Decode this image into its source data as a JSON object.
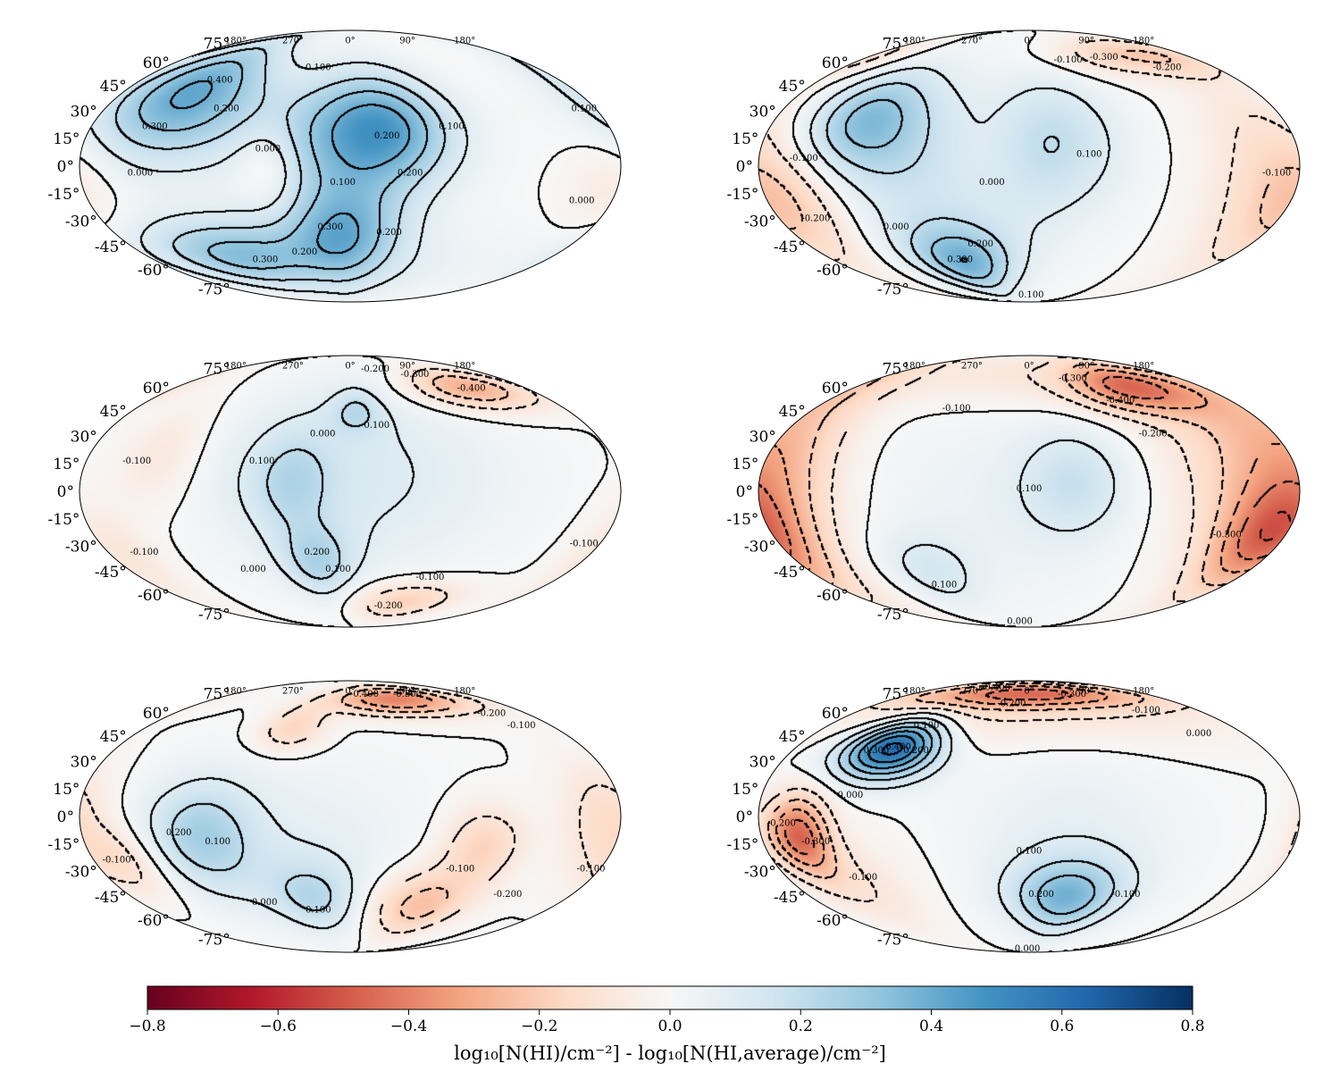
{
  "chart_data": {
    "type": "heatmap",
    "projection": "mollweide",
    "layout": "3x2 grid",
    "lat_ticks": [
      "75°",
      "60°",
      "45°",
      "30°",
      "15°",
      "0°",
      "-15°",
      "-30°",
      "-45°",
      "-60°",
      "-75°"
    ],
    "lon_ticks": [
      "180°",
      "90°",
      "0°",
      "270°",
      "180°"
    ],
    "colorbar": {
      "label": "log₁₀[N(HI)/cm⁻²] - log₁₀[N(HI,average)/cm⁻²]",
      "range": [
        -0.8,
        0.8
      ],
      "ticks": [
        "−0.8",
        "−0.6",
        "−0.4",
        "−0.2",
        "0.0",
        "0.2",
        "0.4",
        "0.6",
        "0.8"
      ],
      "colormap": "RdBu",
      "colors": [
        "#67001f",
        "#b2182b",
        "#d6604d",
        "#f4a582",
        "#fddbc7",
        "#f7f7f7",
        "#d1e5f0",
        "#92c5de",
        "#4393c3",
        "#2166ac",
        "#053061"
      ]
    },
    "panels": [
      {
        "name": "panel-1",
        "blobs": [
          {
            "lon": 0,
            "lat": 18,
            "amp": 0.32,
            "sl": 40,
            "sb": 25
          },
          {
            "lon": -30,
            "lat": 20,
            "amp": 0.22,
            "sl": 30,
            "sb": 20
          },
          {
            "lon": 5,
            "lat": -35,
            "amp": 0.32,
            "sl": 30,
            "sb": 20
          },
          {
            "lon": 125,
            "lat": 40,
            "amp": 0.42,
            "sl": 40,
            "sb": 25
          },
          {
            "lon": 100,
            "lat": -50,
            "amp": 0.3,
            "sl": 50,
            "sb": 15
          },
          {
            "lon": 55,
            "lat": 0,
            "amp": -0.12,
            "sl": 15,
            "sb": 15
          },
          {
            "lon": -175,
            "lat": -10,
            "amp": -0.08,
            "sl": 20,
            "sb": 20
          },
          {
            "lon": 0,
            "lat": -60,
            "amp": 0.1,
            "sl": 80,
            "sb": 20
          }
        ],
        "labels": [
          {
            "text": "0.100",
            "lon": -170,
            "lat": 30
          },
          {
            "text": "0.100",
            "lon": -70,
            "lat": 20
          },
          {
            "text": "0.200",
            "lon": -25,
            "lat": 15
          },
          {
            "text": "0.200",
            "lon": -40,
            "lat": -5
          },
          {
            "text": "0.100",
            "lon": 5,
            "lat": -10
          },
          {
            "text": "0.200",
            "lon": -30,
            "lat": -38
          },
          {
            "text": "0.300",
            "lon": 15,
            "lat": -35
          },
          {
            "text": "0.000",
            "lon": -160,
            "lat": -20
          },
          {
            "text": "0.000",
            "lon": 55,
            "lat": 8
          },
          {
            "text": "0.000",
            "lon": 140,
            "lat": -5
          },
          {
            "text": "0.100",
            "lon": 30,
            "lat": 55
          },
          {
            "text": "0.400",
            "lon": 110,
            "lat": 47
          },
          {
            "text": "0.200",
            "lon": 90,
            "lat": 30
          },
          {
            "text": "0.300",
            "lon": 135,
            "lat": 20
          },
          {
            "text": "0.200",
            "lon": 40,
            "lat": -50
          },
          {
            "text": "0.300",
            "lon": 80,
            "lat": -55
          }
        ]
      },
      {
        "name": "panel-2",
        "blobs": [
          {
            "lon": -20,
            "lat": 15,
            "amp": 0.15,
            "sl": 30,
            "sb": 25
          },
          {
            "lon": 115,
            "lat": 25,
            "amp": 0.3,
            "sl": 30,
            "sb": 20
          },
          {
            "lon": 60,
            "lat": -55,
            "amp": 0.32,
            "sl": 30,
            "sb": 15
          },
          {
            "lon": 60,
            "lat": -10,
            "amp": 0.15,
            "sl": 60,
            "sb": 40
          },
          {
            "lon": 165,
            "lat": -20,
            "amp": -0.2,
            "sl": 30,
            "sb": 25
          },
          {
            "lon": -160,
            "lat": 0,
            "amp": -0.12,
            "sl": 30,
            "sb": 40
          },
          {
            "lon": -120,
            "lat": 65,
            "amp": -0.2,
            "sl": 60,
            "sb": 10
          },
          {
            "lon": 30,
            "lat": 5,
            "amp": -0.05,
            "sl": 20,
            "sb": 20
          }
        ],
        "labels": [
          {
            "text": "-0.300",
            "lon": -80,
            "lat": 62
          },
          {
            "text": "-0.200",
            "lon": -130,
            "lat": 55
          },
          {
            "text": "-0.100",
            "lon": -40,
            "lat": 60
          },
          {
            "text": "0.100",
            "lon": -40,
            "lat": 5
          },
          {
            "text": "0.000",
            "lon": 25,
            "lat": -10
          },
          {
            "text": "-0.100",
            "lon": -165,
            "lat": -5
          },
          {
            "text": "-0.100",
            "lon": 150,
            "lat": 3
          },
          {
            "text": "-0.200",
            "lon": 155,
            "lat": -30
          },
          {
            "text": "0.000",
            "lon": 100,
            "lat": -35
          },
          {
            "text": "0.200",
            "lon": 40,
            "lat": -45
          },
          {
            "text": "0.300",
            "lon": 65,
            "lat": -55
          },
          {
            "text": "0.100",
            "lon": -5,
            "lat": -83
          }
        ]
      },
      {
        "name": "panel-3",
        "blobs": [
          {
            "lon": 0,
            "lat": 10,
            "amp": 0.12,
            "sl": 70,
            "sb": 40
          },
          {
            "lon": -5,
            "lat": 45,
            "amp": 0.15,
            "sl": 15,
            "sb": 10
          },
          {
            "lon": 40,
            "lat": 5,
            "amp": 0.15,
            "sl": 20,
            "sb": 20
          },
          {
            "lon": 25,
            "lat": -40,
            "amp": 0.2,
            "sl": 20,
            "sb": 15
          },
          {
            "lon": -120,
            "lat": 60,
            "amp": -0.3,
            "sl": 40,
            "sb": 10
          },
          {
            "lon": -60,
            "lat": -65,
            "amp": -0.2,
            "sl": 40,
            "sb": 10
          },
          {
            "lon": 170,
            "lat": -35,
            "amp": -0.1,
            "sl": 20,
            "sb": 20
          },
          {
            "lon": 130,
            "lat": 20,
            "amp": -0.1,
            "sl": 20,
            "sb": 20
          }
        ],
        "labels": [
          {
            "text": "-0.400",
            "lon": -120,
            "lat": 58
          },
          {
            "text": "-0.300",
            "lon": -80,
            "lat": 68
          },
          {
            "text": "-0.200",
            "lon": -35,
            "lat": 72
          },
          {
            "text": "0.100",
            "lon": -20,
            "lat": 35
          },
          {
            "text": "0.000",
            "lon": 20,
            "lat": 30
          },
          {
            "text": "0.100",
            "lon": 60,
            "lat": 15
          },
          {
            "text": "-0.100",
            "lon": 145,
            "lat": 15
          },
          {
            "text": "0.200",
            "lon": 25,
            "lat": -35
          },
          {
            "text": "0.100",
            "lon": 10,
            "lat": -45
          },
          {
            "text": "0.000",
            "lon": 80,
            "lat": -45
          },
          {
            "text": "-0.100",
            "lon": -170,
            "lat": -30
          },
          {
            "text": "-0.100",
            "lon": -70,
            "lat": -50
          },
          {
            "text": "-0.200",
            "lon": -50,
            "lat": -70
          },
          {
            "text": "-0.100",
            "lon": 155,
            "lat": -35
          }
        ]
      },
      {
        "name": "panel-4",
        "blobs": [
          {
            "lon": -30,
            "lat": 5,
            "amp": 0.15,
            "sl": 25,
            "sb": 20
          },
          {
            "lon": 80,
            "lat": -45,
            "amp": 0.12,
            "sl": 25,
            "sb": 15
          },
          {
            "lon": 20,
            "lat": -10,
            "amp": 0.05,
            "sl": 70,
            "sb": 45
          },
          {
            "lon": -100,
            "lat": 60,
            "amp": -0.35,
            "sl": 40,
            "sb": 12
          },
          {
            "lon": -165,
            "lat": -25,
            "amp": -0.3,
            "sl": 25,
            "sb": 20
          },
          {
            "lon": 170,
            "lat": 0,
            "amp": -0.2,
            "sl": 30,
            "sb": 40
          },
          {
            "lon": -150,
            "lat": 20,
            "amp": -0.18,
            "sl": 40,
            "sb": 40
          },
          {
            "lon": 0,
            "lat": 70,
            "amp": -0.1,
            "sl": 150,
            "sb": 15
          }
        ],
        "labels": [
          {
            "text": "-0.300",
            "lon": -50,
            "lat": 65
          },
          {
            "text": "-0.400",
            "lon": -80,
            "lat": 50
          },
          {
            "text": "-0.200",
            "lon": -90,
            "lat": 30
          },
          {
            "text": "-0.100",
            "lon": 60,
            "lat": 45
          },
          {
            "text": "0.100",
            "lon": 0,
            "lat": 0
          },
          {
            "text": "-0.300",
            "lon": -140,
            "lat": -25
          },
          {
            "text": "0.100",
            "lon": 80,
            "lat": -55
          },
          {
            "text": "0.000",
            "lon": 30,
            "lat": -85
          }
        ]
      },
      {
        "name": "panel-5",
        "blobs": [
          {
            "lon": 100,
            "lat": -10,
            "amp": 0.22,
            "sl": 25,
            "sb": 20
          },
          {
            "lon": 30,
            "lat": -45,
            "amp": 0.18,
            "sl": 25,
            "sb": 15
          },
          {
            "lon": 50,
            "lat": -20,
            "amp": 0.08,
            "sl": 70,
            "sb": 35
          },
          {
            "lon": -60,
            "lat": 70,
            "amp": -0.4,
            "sl": 60,
            "sb": 8
          },
          {
            "lon": -60,
            "lat": -50,
            "amp": -0.25,
            "sl": 30,
            "sb": 15
          },
          {
            "lon": -90,
            "lat": -15,
            "amp": -0.18,
            "sl": 20,
            "sb": 15
          },
          {
            "lon": 160,
            "lat": -25,
            "amp": -0.15,
            "sl": 20,
            "sb": 15
          },
          {
            "lon": 50,
            "lat": 50,
            "amp": -0.18,
            "sl": 20,
            "sb": 10
          },
          {
            "lon": -170,
            "lat": 0,
            "amp": -0.15,
            "sl": 20,
            "sb": 20
          }
        ],
        "labels": [
          {
            "text": "-0.400",
            "lon": -20,
            "lat": 72
          },
          {
            "text": "-0.300",
            "lon": -80,
            "lat": 72
          },
          {
            "text": "-0.200",
            "lon": -140,
            "lat": 58
          },
          {
            "text": "-0.100",
            "lon": -150,
            "lat": 50
          },
          {
            "text": "0.100",
            "lon": 90,
            "lat": -15
          },
          {
            "text": "0.200",
            "lon": 115,
            "lat": -10
          },
          {
            "text": "-0.100",
            "lon": -80,
            "lat": -30
          },
          {
            "text": "-0.200",
            "lon": -130,
            "lat": -45
          },
          {
            "text": "0.100",
            "lon": 30,
            "lat": -55
          },
          {
            "text": "0.000",
            "lon": 75,
            "lat": -50
          },
          {
            "text": "-0.100",
            "lon": -175,
            "lat": -30
          },
          {
            "text": "-0.100",
            "lon": 165,
            "lat": -25
          }
        ]
      },
      {
        "name": "panel-6",
        "blobs": [
          {
            "lon": 105,
            "lat": 38,
            "amp": 0.65,
            "sl": 25,
            "sb": 12
          },
          {
            "lon": -30,
            "lat": -45,
            "amp": 0.32,
            "sl": 30,
            "sb": 15
          },
          {
            "lon": -30,
            "lat": -20,
            "amp": 0.08,
            "sl": 50,
            "sb": 40
          },
          {
            "lon": 155,
            "lat": -10,
            "amp": -0.45,
            "sl": 15,
            "sb": 15
          },
          {
            "lon": 0,
            "lat": 75,
            "amp": -0.4,
            "sl": 120,
            "sb": 8
          },
          {
            "lon": 0,
            "lat": 60,
            "amp": -0.1,
            "sl": 150,
            "sb": 15
          },
          {
            "lon": 130,
            "lat": -40,
            "amp": -0.1,
            "sl": 30,
            "sb": 20
          }
        ],
        "labels": [
          {
            "text": "-0.300",
            "lon": -60,
            "lat": 72
          },
          {
            "text": "-0.400",
            "lon": 60,
            "lat": 78
          },
          {
            "text": "-0.200",
            "lon": 20,
            "lat": 65
          },
          {
            "text": "-0.100",
            "lon": -120,
            "lat": 60
          },
          {
            "text": "0.000",
            "lon": -140,
            "lat": 45
          },
          {
            "text": "0.100",
            "lon": 90,
            "lat": 50
          },
          {
            "text": "0.200",
            "lon": 85,
            "lat": 35
          },
          {
            "text": "0.300",
            "lon": 115,
            "lat": 35
          },
          {
            "text": "0.400",
            "lon": 100,
            "lat": 37
          },
          {
            "text": "0.000",
            "lon": 120,
            "lat": 10
          },
          {
            "text": "-0.200",
            "lon": 165,
            "lat": -5
          },
          {
            "text": "-0.300",
            "lon": 145,
            "lat": -15
          },
          {
            "text": "-0.100",
            "lon": 125,
            "lat": -35
          },
          {
            "text": "0.100",
            "lon": 0,
            "lat": -20
          },
          {
            "text": "0.200",
            "lon": -10,
            "lat": -45
          },
          {
            "text": "-0.100",
            "lon": -80,
            "lat": -45
          },
          {
            "text": "0.000",
            "lon": 10,
            "lat": -88
          }
        ]
      }
    ]
  }
}
